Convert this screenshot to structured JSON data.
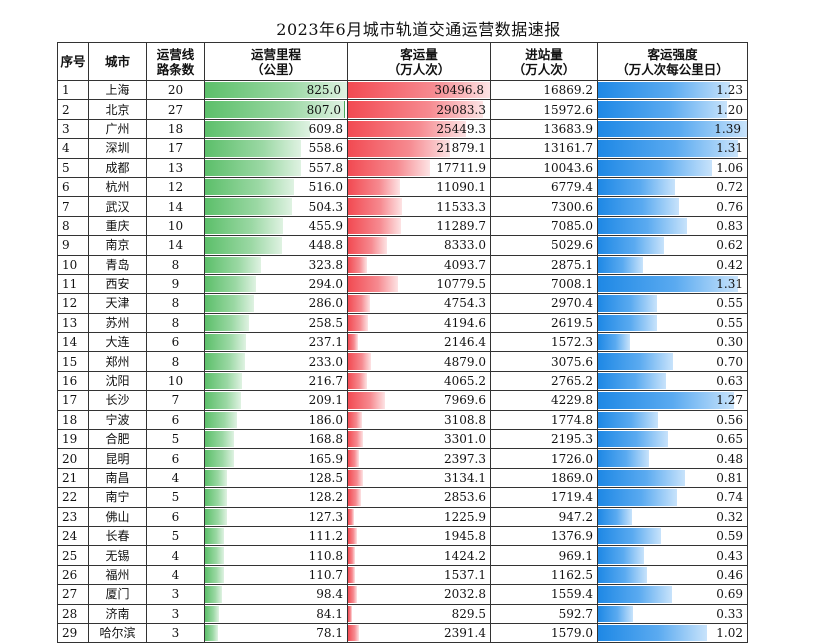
{
  "title": "2023年6月城市轨道交通运营数据速报",
  "headers": {
    "seq": "序号",
    "city": "城市",
    "lines": [
      "运营线",
      "路条数"
    ],
    "mileage": [
      "运营里程",
      "（公里）"
    ],
    "passengers": [
      "客运量",
      "（万人次）"
    ],
    "entries": [
      "进站量",
      "（万人次）"
    ],
    "intensity": [
      "客运强度",
      "（万人次每公里日）"
    ]
  },
  "colors": {
    "mileage_bar": "#5cbf6a",
    "passenger_bar": "#f24a52",
    "intensity_bar": "#1e88e5"
  },
  "rows": [
    {
      "seq": "1",
      "city": "上海",
      "lines": "20",
      "mileage": "825.0",
      "passengers": "30496.8",
      "entries": "16869.2",
      "intensity": "1.23"
    },
    {
      "seq": "2",
      "city": "北京",
      "lines": "27",
      "mileage": "807.0",
      "passengers": "29083.3",
      "entries": "15972.6",
      "intensity": "1.20"
    },
    {
      "seq": "3",
      "city": "广州",
      "lines": "18",
      "mileage": "609.8",
      "passengers": "25449.3",
      "entries": "13683.9",
      "intensity": "1.39"
    },
    {
      "seq": "4",
      "city": "深圳",
      "lines": "17",
      "mileage": "558.6",
      "passengers": "21879.1",
      "entries": "13161.7",
      "intensity": "1.31"
    },
    {
      "seq": "5",
      "city": "成都",
      "lines": "13",
      "mileage": "557.8",
      "passengers": "17711.9",
      "entries": "10043.6",
      "intensity": "1.06"
    },
    {
      "seq": "6",
      "city": "杭州",
      "lines": "12",
      "mileage": "516.0",
      "passengers": "11090.1",
      "entries": "6779.4",
      "intensity": "0.72"
    },
    {
      "seq": "7",
      "city": "武汉",
      "lines": "14",
      "mileage": "504.3",
      "passengers": "11533.3",
      "entries": "7300.6",
      "intensity": "0.76"
    },
    {
      "seq": "8",
      "city": "重庆",
      "lines": "10",
      "mileage": "455.9",
      "passengers": "11289.7",
      "entries": "7085.0",
      "intensity": "0.83"
    },
    {
      "seq": "9",
      "city": "南京",
      "lines": "14",
      "mileage": "448.8",
      "passengers": "8333.0",
      "entries": "5029.6",
      "intensity": "0.62"
    },
    {
      "seq": "10",
      "city": "青岛",
      "lines": "8",
      "mileage": "323.8",
      "passengers": "4093.7",
      "entries": "2875.1",
      "intensity": "0.42"
    },
    {
      "seq": "11",
      "city": "西安",
      "lines": "9",
      "mileage": "294.0",
      "passengers": "10779.5",
      "entries": "7008.1",
      "intensity": "1.31"
    },
    {
      "seq": "12",
      "city": "天津",
      "lines": "8",
      "mileage": "286.0",
      "passengers": "4754.3",
      "entries": "2970.4",
      "intensity": "0.55"
    },
    {
      "seq": "13",
      "city": "苏州",
      "lines": "8",
      "mileage": "258.5",
      "passengers": "4194.6",
      "entries": "2619.5",
      "intensity": "0.55"
    },
    {
      "seq": "14",
      "city": "大连",
      "lines": "6",
      "mileage": "237.1",
      "passengers": "2146.4",
      "entries": "1572.3",
      "intensity": "0.30"
    },
    {
      "seq": "15",
      "city": "郑州",
      "lines": "8",
      "mileage": "233.0",
      "passengers": "4879.0",
      "entries": "3075.6",
      "intensity": "0.70"
    },
    {
      "seq": "16",
      "city": "沈阳",
      "lines": "10",
      "mileage": "216.7",
      "passengers": "4065.2",
      "entries": "2765.2",
      "intensity": "0.63"
    },
    {
      "seq": "17",
      "city": "长沙",
      "lines": "7",
      "mileage": "209.1",
      "passengers": "7969.6",
      "entries": "4229.8",
      "intensity": "1.27"
    },
    {
      "seq": "18",
      "city": "宁波",
      "lines": "6",
      "mileage": "186.0",
      "passengers": "3108.8",
      "entries": "1774.8",
      "intensity": "0.56"
    },
    {
      "seq": "19",
      "city": "合肥",
      "lines": "5",
      "mileage": "168.8",
      "passengers": "3301.0",
      "entries": "2195.3",
      "intensity": "0.65"
    },
    {
      "seq": "20",
      "city": "昆明",
      "lines": "6",
      "mileage": "165.9",
      "passengers": "2397.3",
      "entries": "1726.0",
      "intensity": "0.48"
    },
    {
      "seq": "21",
      "city": "南昌",
      "lines": "4",
      "mileage": "128.5",
      "passengers": "3134.1",
      "entries": "1869.0",
      "intensity": "0.81"
    },
    {
      "seq": "22",
      "city": "南宁",
      "lines": "5",
      "mileage": "128.2",
      "passengers": "2853.6",
      "entries": "1719.4",
      "intensity": "0.74"
    },
    {
      "seq": "23",
      "city": "佛山",
      "lines": "6",
      "mileage": "127.3",
      "passengers": "1225.9",
      "entries": "947.2",
      "intensity": "0.32"
    },
    {
      "seq": "24",
      "city": "长春",
      "lines": "5",
      "mileage": "111.2",
      "passengers": "1945.8",
      "entries": "1376.9",
      "intensity": "0.59"
    },
    {
      "seq": "25",
      "city": "无锡",
      "lines": "4",
      "mileage": "110.8",
      "passengers": "1424.2",
      "entries": "969.1",
      "intensity": "0.43"
    },
    {
      "seq": "26",
      "city": "福州",
      "lines": "4",
      "mileage": "110.7",
      "passengers": "1537.1",
      "entries": "1162.5",
      "intensity": "0.46"
    },
    {
      "seq": "27",
      "city": "厦门",
      "lines": "3",
      "mileage": "98.4",
      "passengers": "2032.8",
      "entries": "1559.4",
      "intensity": "0.69"
    },
    {
      "seq": "28",
      "city": "济南",
      "lines": "3",
      "mileage": "84.1",
      "passengers": "829.5",
      "entries": "592.7",
      "intensity": "0.33"
    },
    {
      "seq": "29",
      "city": "哈尔滨",
      "lines": "3",
      "mileage": "78.1",
      "passengers": "2391.4",
      "entries": "1579.0",
      "intensity": "1.02"
    }
  ]
}
